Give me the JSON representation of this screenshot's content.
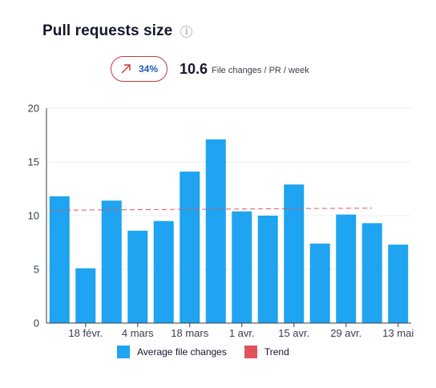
{
  "header": {
    "title": "Pull requests size",
    "info_icon": "info-circle-icon"
  },
  "kpi": {
    "trend_icon": "arrow-up-right-icon",
    "trend_percent": "34%",
    "trend_color": "#c23a3a",
    "percent_color": "#1d5bbf",
    "value": "10.6",
    "unit": "File changes / PR / week"
  },
  "chart_data": {
    "type": "bar",
    "title": "",
    "xlabel": "",
    "ylabel": "",
    "ylim": [
      0,
      20
    ],
    "yticks": [
      0,
      5,
      10,
      15,
      20
    ],
    "grid": true,
    "categories": [
      "w1",
      "w2",
      "w3",
      "w4",
      "w5",
      "w6",
      "w7",
      "w8",
      "w9",
      "w10",
      "w11",
      "w12",
      "w13",
      "w14"
    ],
    "x_tick_labels": [
      "",
      "18 févr.",
      "",
      "4 mars",
      "",
      "18 mars",
      "",
      "1 avr.",
      "",
      "15 avr.",
      "",
      "29 avr.",
      "",
      "13 mai"
    ],
    "series": [
      {
        "name": "Average file changes",
        "color": "#1ea4f0",
        "values": [
          11.8,
          5.1,
          11.4,
          8.6,
          9.5,
          14.1,
          17.1,
          10.4,
          10.0,
          12.9,
          7.4,
          10.1,
          9.3,
          7.3
        ]
      }
    ],
    "trend": {
      "name": "Trend",
      "color": "#e0535c",
      "start": 10.5,
      "end": 10.7,
      "from_index": 0,
      "to_index": 12
    },
    "legend_position": "bottom"
  }
}
